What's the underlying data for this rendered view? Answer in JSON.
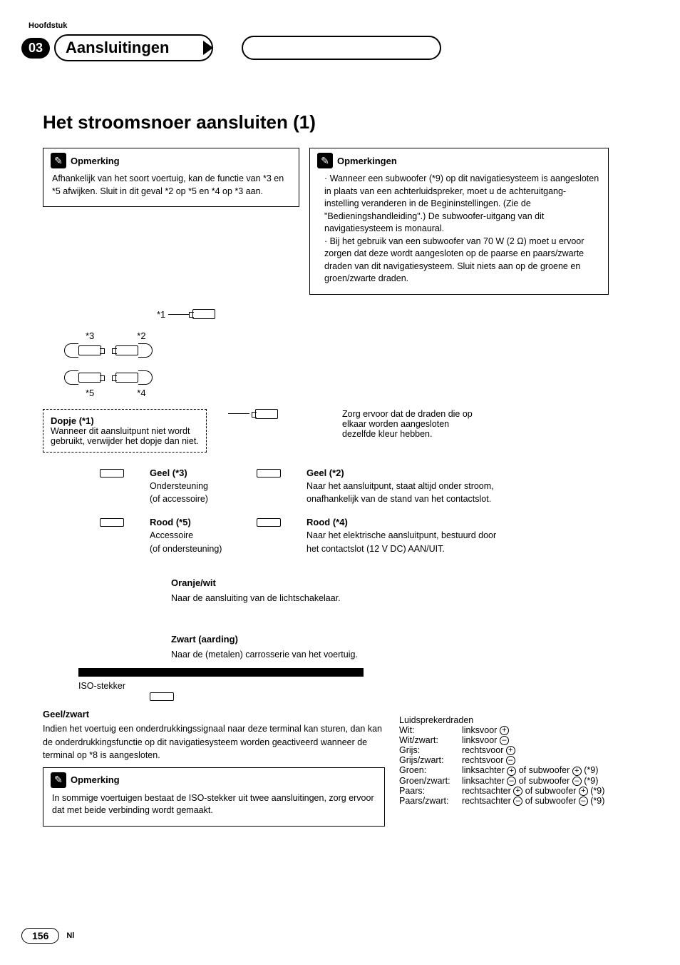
{
  "chapter_label": "Hoofdstuk",
  "chapter_number": "03",
  "chapter_title": "Aansluitingen",
  "main_heading": "Het stroomsnoer aansluiten (1)",
  "note1": {
    "title": "Opmerking",
    "body": "Afhankelijk van het soort voertuig, kan de functie van *3 en *5 afwijken. Sluit in dit geval *2 op *5 en *4 op *3 aan."
  },
  "note2": {
    "title": "Opmerkingen",
    "items": [
      "Wanneer een subwoofer (*9) op dit navigatiesysteem is aangesloten in plaats van een achterluidspreker, moet u de achteruitgang-instelling veranderen in de Begininstellingen. (Zie de \"Bedieningshandleiding\".) De subwoofer-uitgang van dit navigatiesysteem is monaural.",
      "Bij het gebruik van een subwoofer van 70 W (2 Ω) moet u ervoor zorgen dat deze wordt aangesloten op de paarse en paars/zwarte draden van dit navigatiesysteem. Sluit niets aan op de groene en groen/zwarte draden."
    ]
  },
  "diagram": {
    "refs": {
      "r1": "*1",
      "r2": "*2",
      "r3": "*3",
      "r4": "*4",
      "r5": "*5"
    }
  },
  "dopje": {
    "label": "Dopje (*1)",
    "text": "Wanneer dit aansluitpunt niet wordt gebruikt, verwijder het dopje dan niet."
  },
  "match_wires": "Zorg ervoor dat de draden die op elkaar worden aangesloten dezelfde kleur hebben.",
  "geel3": {
    "label": "Geel (*3)",
    "l1": "Ondersteuning",
    "l2": "(of accessoire)"
  },
  "geel2": {
    "label": "Geel (*2)",
    "text": "Naar het aansluitpunt, staat altijd onder stroom, onafhankelijk van de stand van het contactslot."
  },
  "rood5": {
    "label": "Rood (*5)",
    "l1": "Accessoire",
    "l2": "(of ondersteuning)"
  },
  "rood4": {
    "label": "Rood (*4)",
    "text": "Naar het elektrische aansluitpunt, bestuurd door het contactslot (12 V DC) AAN/UIT."
  },
  "oranje": {
    "label": "Oranje/wit",
    "text": "Naar de aansluiting van de lichtschakelaar."
  },
  "zwart": {
    "label": "Zwart (aarding)",
    "text": "Naar de (metalen) carrosserie van het voertuig."
  },
  "iso_label": "ISO-stekker",
  "geelzwart": {
    "label": "Geel/zwart",
    "text": "Indien het voertuig een onderdrukkingssignaal naar deze terminal kan sturen, dan kan de onderdrukkingsfunctie op dit navigatiesysteem worden geactiveerd wanneer de terminal op *8 is aangesloten."
  },
  "note3": {
    "title": "Opmerking",
    "body": "In sommige voertuigen bestaat de ISO-stekker uit twee aansluitingen, zorg ervoor dat met beide verbinding wordt gemaakt."
  },
  "speaker": {
    "heading": "Luidsprekerdraden",
    "rows": [
      {
        "color": "Wit:",
        "desc": "linksvoor",
        "sign": "+"
      },
      {
        "color": "Wit/zwart:",
        "desc": "linksvoor",
        "sign": "-"
      },
      {
        "color": "Grijs:",
        "desc": "rechtsvoor",
        "sign": "+"
      },
      {
        "color": "Grijs/zwart:",
        "desc": "rechtsvoor",
        "sign": "-"
      },
      {
        "color": "Groen:",
        "desc": "linksachter",
        "sign": "+",
        "sub": "of subwoofer",
        "subsign": "+",
        "ref": "(*9)"
      },
      {
        "color": "Groen/zwart:",
        "desc": "linksachter",
        "sign": "-",
        "sub": "of subwoofer",
        "subsign": "-",
        "ref": "(*9)"
      },
      {
        "color": "Paars:",
        "desc": "rechtsachter",
        "sign": "+",
        "sub": "of subwoofer",
        "subsign": "+",
        "ref": "(*9)"
      },
      {
        "color": "Paars/zwart:",
        "desc": "rechtsachter",
        "sign": "-",
        "sub": "of subwoofer",
        "subsign": "-",
        "ref": "(*9)"
      }
    ]
  },
  "page_number": "156",
  "lang": "Nl"
}
